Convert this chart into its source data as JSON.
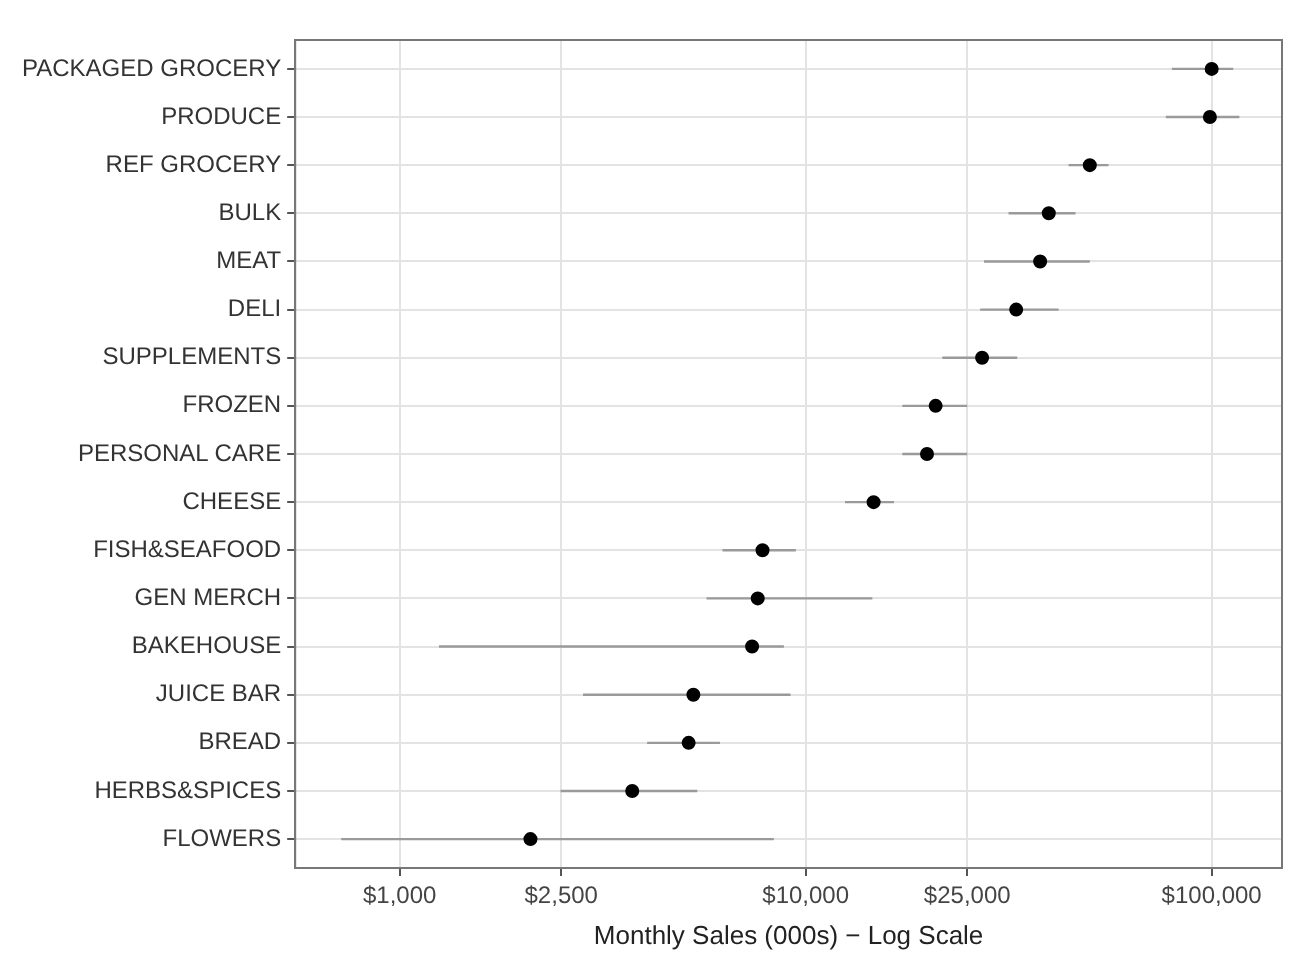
{
  "chart_data": {
    "type": "scatter",
    "orientation": "horizontal",
    "xlabel": "Monthly Sales (000s) − Log Scale",
    "categories": [
      "PACKAGED GROCERY",
      "PRODUCE",
      "REF GROCERY",
      "BULK",
      "MEAT",
      "DELI",
      "SUPPLEMENTS",
      "FROZEN",
      "PERSONAL CARE",
      "CHEESE",
      "FISH&SEAFOOD",
      "GEN MERCH",
      "BAKEHOUSE",
      "JUICE BAR",
      "BREAD",
      "HERBS&SPICES",
      "FLOWERS"
    ],
    "values": [
      100000,
      99000,
      50100,
      39700,
      37800,
      33000,
      27200,
      20900,
      19900,
      14700,
      7830,
      7620,
      7380,
      5290,
      5150,
      3740,
      2100
    ],
    "errors": [
      [
        79800,
        113000
      ],
      [
        77100,
        117000
      ],
      [
        44400,
        55700
      ],
      [
        31600,
        46200
      ],
      [
        27500,
        50100
      ],
      [
        26900,
        42000
      ],
      [
        21700,
        33200
      ],
      [
        17300,
        25000
      ],
      [
        17300,
        25000
      ],
      [
        12500,
        16500
      ],
      [
        6240,
        9460
      ],
      [
        5700,
        14600
      ],
      [
        1250,
        8840
      ],
      [
        2830,
        9180
      ],
      [
        4070,
        6150
      ],
      [
        2490,
        5410
      ],
      [
        718,
        8350
      ]
    ],
    "color": "#000000",
    "marker": "circle",
    "log": "x",
    "grid": true,
    "xlim": [
      553,
      149000
    ],
    "xticks": [
      {
        "value": 1000,
        "label": "$1,000"
      },
      {
        "value": 2500,
        "label": "$2,500"
      },
      {
        "value": 10000,
        "label": "$10,000"
      },
      {
        "value": 25000,
        "label": "$25,000"
      },
      {
        "value": 100000,
        "label": "$100,000"
      }
    ]
  }
}
